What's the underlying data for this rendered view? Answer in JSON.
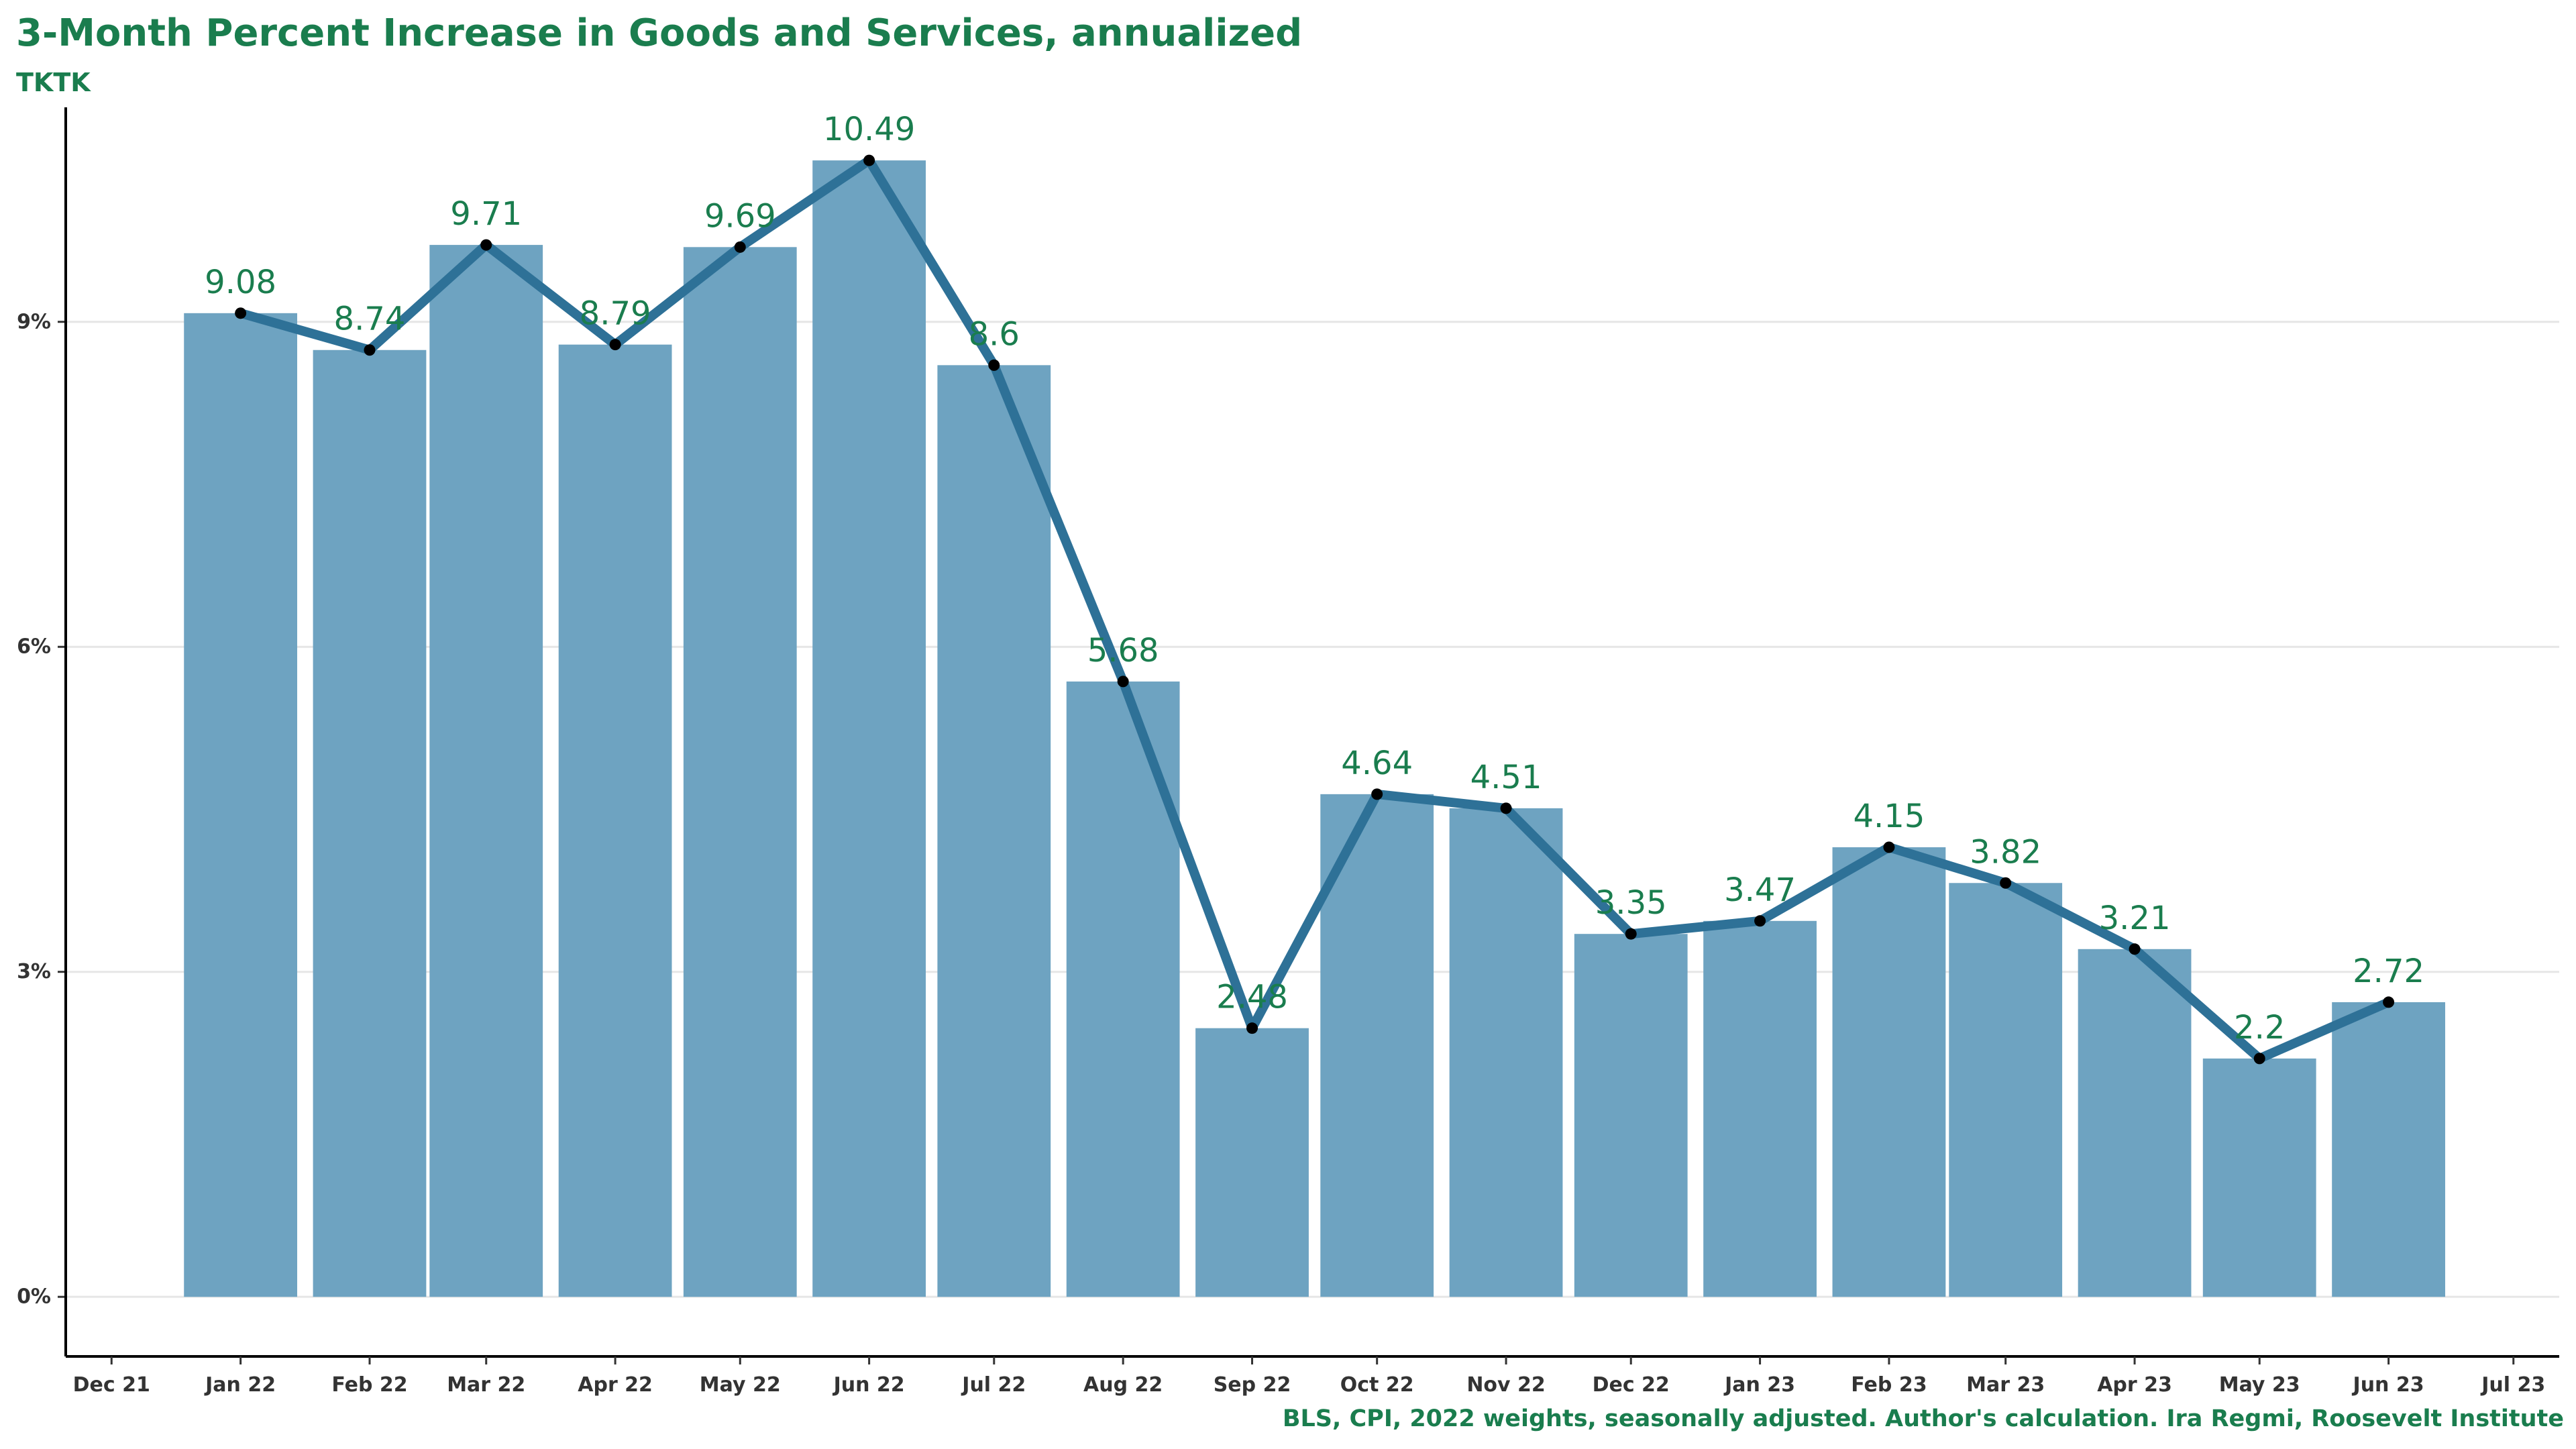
{
  "chart_data": {
    "type": "bar",
    "title": "3-Month Percent Increase in  Goods and Services, annualized",
    "subtitle": "TKTK",
    "caption": "BLS, CPI, 2022 weights, seasonally adjusted. Author's calculation. Ira Regmi, Roosevelt Institute",
    "xlabel": "",
    "ylabel": "",
    "x_ticks": [
      "Dec 21",
      "Jan 22",
      "Feb 22",
      "Mar 22",
      "Apr 22",
      "May 22",
      "Jun 22",
      "Jul 22",
      "Aug 22",
      "Sep 22",
      "Oct 22",
      "Nov 22",
      "Dec 22",
      "Jan 23",
      "Feb 23",
      "Mar 23",
      "Apr 23",
      "May 23",
      "Jun 23",
      "Jul 23"
    ],
    "x_tick_dates": [
      "2021-12-01",
      "2022-01-01",
      "2022-02-01",
      "2022-03-01",
      "2022-04-01",
      "2022-05-01",
      "2022-06-01",
      "2022-07-01",
      "2022-08-01",
      "2022-09-01",
      "2022-10-01",
      "2022-11-01",
      "2022-12-01",
      "2023-01-01",
      "2023-02-01",
      "2023-03-01",
      "2023-04-01",
      "2023-05-01",
      "2023-06-01",
      "2023-07-01"
    ],
    "x": [
      "2022-01-01",
      "2022-02-01",
      "2022-03-01",
      "2022-04-01",
      "2022-05-01",
      "2022-06-01",
      "2022-07-01",
      "2022-08-01",
      "2022-09-01",
      "2022-10-01",
      "2022-11-01",
      "2022-12-01",
      "2023-01-01",
      "2023-02-01",
      "2023-03-01",
      "2023-04-01",
      "2023-05-01",
      "2023-06-01"
    ],
    "values": [
      9.08,
      8.74,
      9.71,
      8.79,
      9.69,
      10.49,
      8.6,
      5.68,
      2.48,
      4.64,
      4.51,
      3.35,
      3.47,
      4.15,
      3.82,
      3.21,
      2.2,
      2.72
    ],
    "data_labels": [
      "9.08",
      "8.74",
      "9.71",
      "8.79",
      "9.69",
      "10.49",
      "8.6",
      "5.68",
      "2.48",
      "4.64",
      "4.51",
      "3.35",
      "3.47",
      "4.15",
      "3.82",
      "3.21",
      "2.2",
      "2.72"
    ],
    "line_overlay": true,
    "y_ticks": [
      0,
      3,
      6,
      9
    ],
    "y_tick_labels": [
      "0%",
      "3%",
      "6%",
      "9%"
    ],
    "ylim": [
      -0.55,
      10.98
    ],
    "xlim": [
      "2021-11-20",
      "2023-07-12"
    ],
    "grid": "horizontal",
    "legend": "none",
    "colors": {
      "bar": "#6ea3c1",
      "line": "#2e7197",
      "point": "#000000",
      "data_label": "#1a7d4e",
      "title": "#1a7d4e",
      "axis_text": "#333333",
      "grid": "#e6e6e6"
    }
  }
}
